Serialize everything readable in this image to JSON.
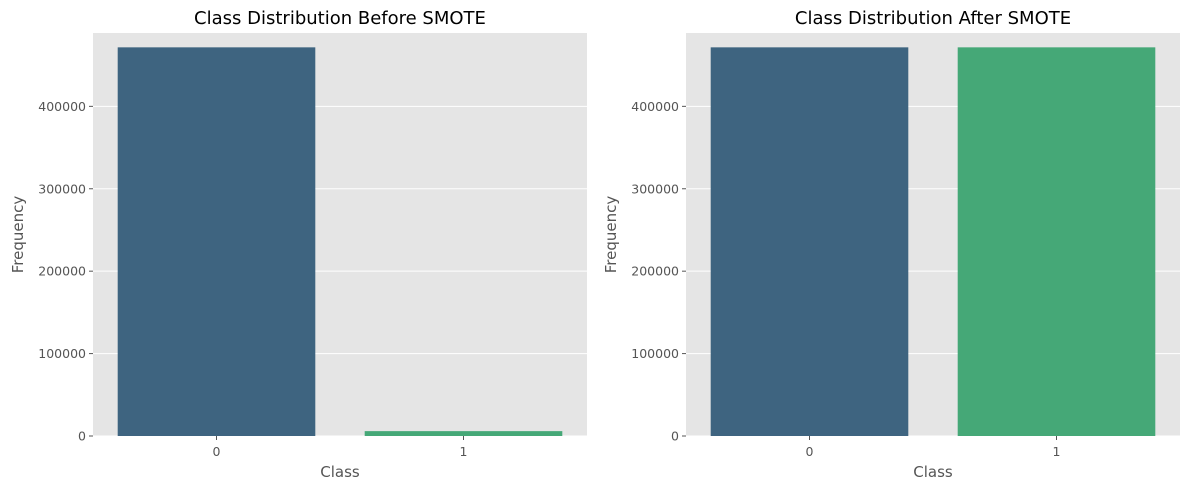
{
  "chart_data": [
    {
      "type": "bar",
      "title": "Class Distribution Before SMOTE",
      "xlabel": "Class",
      "ylabel": "Frequency",
      "categories": [
        "0",
        "1"
      ],
      "values": [
        471600,
        5900
      ],
      "colors": [
        "#3e6480",
        "#45a877"
      ],
      "ylim": [
        0,
        489000
      ],
      "yticks": [
        0,
        100000,
        200000,
        300000,
        400000
      ],
      "grid": true
    },
    {
      "type": "bar",
      "title": "Class Distribution After SMOTE",
      "xlabel": "Class",
      "ylabel": "Frequency",
      "categories": [
        "0",
        "1"
      ],
      "values": [
        471600,
        471600
      ],
      "colors": [
        "#3e6480",
        "#45a877"
      ],
      "ylim": [
        0,
        489000
      ],
      "yticks": [
        0,
        100000,
        200000,
        300000,
        400000
      ],
      "grid": true
    }
  ],
  "style": {
    "panel_background": "#e5e5e5",
    "grid_color": "#ffffff",
    "tick_color": "#555555"
  }
}
